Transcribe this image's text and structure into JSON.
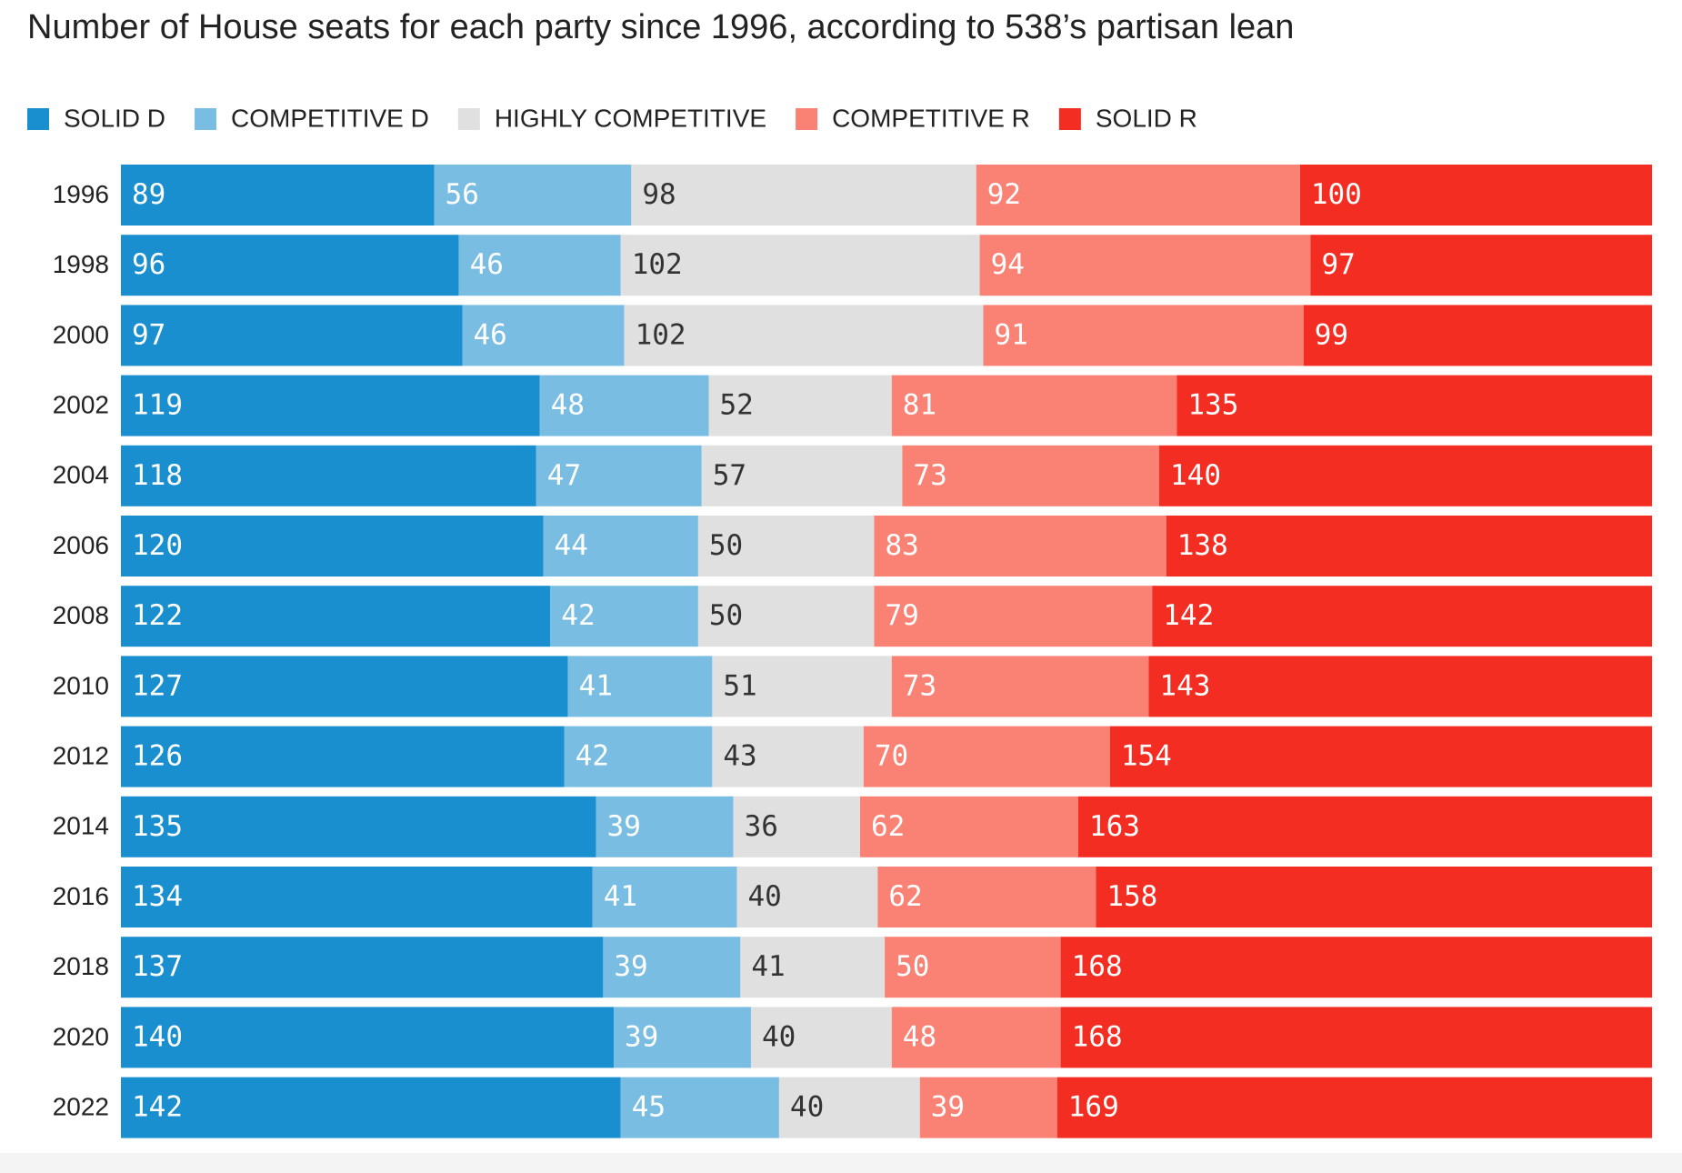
{
  "chart_data": {
    "type": "stacked-bar",
    "orientation": "horizontal",
    "title": "Number of House seats for each party since 1996, according to 538’s partisan lean",
    "categories": [
      "1996",
      "1998",
      "2000",
      "2002",
      "2004",
      "2006",
      "2008",
      "2010",
      "2012",
      "2014",
      "2016",
      "2018",
      "2020",
      "2022"
    ],
    "series": [
      {
        "name": "SOLID D",
        "color": "#1a8fd0",
        "values": [
          89,
          96,
          97,
          119,
          118,
          120,
          122,
          127,
          126,
          135,
          134,
          137,
          140,
          142
        ]
      },
      {
        "name": "COMPETITIVE D",
        "color": "#79bde3",
        "values": [
          56,
          46,
          46,
          48,
          47,
          44,
          42,
          41,
          42,
          39,
          41,
          39,
          39,
          45
        ]
      },
      {
        "name": "HIGHLY COMPETITIVE",
        "color": "#e0e0e0",
        "values": [
          98,
          102,
          102,
          52,
          57,
          50,
          50,
          51,
          43,
          36,
          40,
          41,
          40,
          40
        ]
      },
      {
        "name": "COMPETITIVE R",
        "color": "#fa8275",
        "values": [
          92,
          94,
          91,
          81,
          73,
          83,
          79,
          73,
          70,
          62,
          62,
          50,
          48,
          39
        ]
      },
      {
        "name": "SOLID R",
        "color": "#f42d23",
        "values": [
          100,
          97,
          99,
          135,
          140,
          138,
          142,
          143,
          154,
          163,
          158,
          168,
          168,
          169
        ]
      }
    ]
  }
}
